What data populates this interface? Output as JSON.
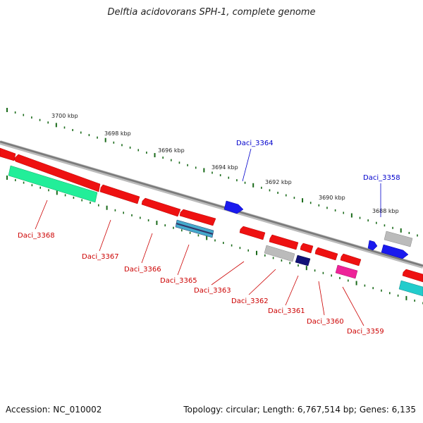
{
  "title": "Delftia acidovorans SPH-1, complete genome",
  "footer": {
    "accession": "Accession: NC_010002",
    "topology": "Topology: circular; Length: 6,767,514 bp; Genes: 6,135"
  },
  "scale_labels": [
    {
      "text": "3700 kbp"
    },
    {
      "text": "3698 kbp"
    },
    {
      "text": "3696 kbp"
    },
    {
      "text": "3694 kbp"
    },
    {
      "text": "3692 kbp"
    },
    {
      "text": "3690 kbp"
    },
    {
      "text": "3688 kbp"
    }
  ],
  "gene_labels": [
    {
      "text": "Daci_3364",
      "strand": "forward",
      "color": "#0000cc"
    },
    {
      "text": "Daci_3358",
      "strand": "forward",
      "color": "#0000cc"
    },
    {
      "text": "Daci_3368",
      "strand": "reverse",
      "color": "#cc0000"
    },
    {
      "text": "Daci_3367",
      "strand": "reverse",
      "color": "#cc0000"
    },
    {
      "text": "Daci_3366",
      "strand": "reverse",
      "color": "#cc0000"
    },
    {
      "text": "Daci_3365",
      "strand": "reverse",
      "color": "#cc0000"
    },
    {
      "text": "Daci_3363",
      "strand": "reverse",
      "color": "#cc0000"
    },
    {
      "text": "Daci_3362",
      "strand": "reverse",
      "color": "#cc0000"
    },
    {
      "text": "Daci_3361",
      "strand": "reverse",
      "color": "#cc0000"
    },
    {
      "text": "Daci_3360",
      "strand": "reverse",
      "color": "#cc0000"
    },
    {
      "text": "Daci_3359",
      "strand": "reverse",
      "color": "#cc0000"
    }
  ],
  "colors": {
    "forward_gene": "#1a1aee",
    "reverse_gene": "#ee1111",
    "backbone": "#808080",
    "tick": "#1a6b1a"
  }
}
